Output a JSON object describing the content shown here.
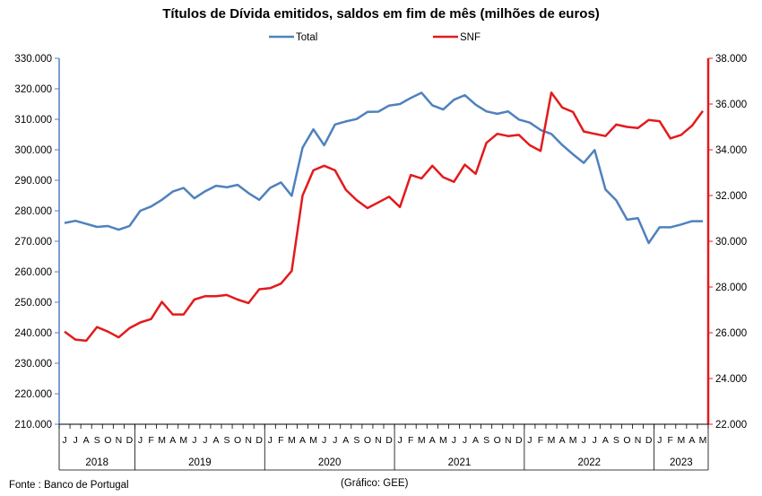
{
  "chart_data": {
    "type": "line",
    "title": "Títulos de Dívida emitidos, saldos em fim de mês  (milhões de euros)",
    "source": "Fonte : Banco de Portugal",
    "credit": "(Gráfico: GEE)",
    "x_month_labels": [
      "J",
      "J",
      "A",
      "S",
      "O",
      "N",
      "D",
      "J",
      "F",
      "M",
      "A",
      "M",
      "J",
      "J",
      "A",
      "S",
      "O",
      "N",
      "D",
      "J",
      "F",
      "M",
      "A",
      "M",
      "J",
      "J",
      "A",
      "S",
      "O",
      "N",
      "D",
      "J",
      "F",
      "M",
      "A",
      "M",
      "J",
      "J",
      "A",
      "S",
      "O",
      "N",
      "D",
      "J",
      "F",
      "M",
      "A",
      "M",
      "J",
      "J",
      "A",
      "S",
      "O",
      "N",
      "D",
      "J",
      "F",
      "M",
      "A",
      "M"
    ],
    "years": [
      {
        "label": "2018",
        "start": 0,
        "end": 7
      },
      {
        "label": "2019",
        "start": 7,
        "end": 19
      },
      {
        "label": "2020",
        "start": 19,
        "end": 31
      },
      {
        "label": "2021",
        "start": 31,
        "end": 43
      },
      {
        "label": "2022",
        "start": 43,
        "end": 55
      },
      {
        "label": "2023",
        "start": 55,
        "end": 60
      }
    ],
    "y_left": {
      "min": 210000,
      "max": 330000,
      "step": 10000,
      "ticks": [
        "210.000",
        "220.000",
        "230.000",
        "240.000",
        "250.000",
        "260.000",
        "270.000",
        "280.000",
        "290.000",
        "300.000",
        "310.000",
        "320.000",
        "330.000"
      ]
    },
    "y_right": {
      "min": 22000,
      "max": 38000,
      "step": 2000,
      "ticks": [
        "22.000",
        "24.000",
        "26.000",
        "28.000",
        "30.000",
        "32.000",
        "34.000",
        "36.000",
        "38.000"
      ]
    },
    "grid": false,
    "legend_position": "top",
    "series": [
      {
        "name": "Total",
        "axis": "left",
        "color": "#4F81BD",
        "values": [
          276000,
          276700,
          275700,
          274700,
          275000,
          273800,
          275000,
          280000,
          281400,
          283600,
          286300,
          287500,
          284100,
          286400,
          288200,
          287700,
          288500,
          285800,
          283600,
          287500,
          289300,
          284900,
          300700,
          306700,
          301500,
          308300,
          309300,
          310100,
          312400,
          312500,
          314500,
          315000,
          317000,
          318700,
          314600,
          313200,
          316400,
          317900,
          314800,
          312600,
          311800,
          312600,
          309900,
          308900,
          306500,
          305200,
          301600,
          298500,
          295700,
          299900,
          287000,
          283400,
          277100,
          277600,
          269400,
          274600,
          274600,
          275500,
          276600,
          276600
        ]
      },
      {
        "name": "SNF",
        "axis": "right",
        "color": "#E31A1C",
        "values": [
          26050,
          25700,
          25650,
          26250,
          26050,
          25800,
          26200,
          26450,
          26600,
          27350,
          26800,
          26800,
          27450,
          27600,
          27600,
          27650,
          27450,
          27300,
          27900,
          27950,
          28150,
          28700,
          32000,
          33100,
          33300,
          33100,
          32250,
          31800,
          31450,
          31700,
          31950,
          31500,
          32900,
          32750,
          33300,
          32800,
          32600,
          33350,
          32950,
          34300,
          34700,
          34600,
          34650,
          34200,
          33950,
          36500,
          35850,
          35650,
          34800,
          34700,
          34600,
          35100,
          35000,
          34950,
          35300,
          35250,
          34500,
          34650,
          35050,
          35700
        ]
      }
    ]
  }
}
